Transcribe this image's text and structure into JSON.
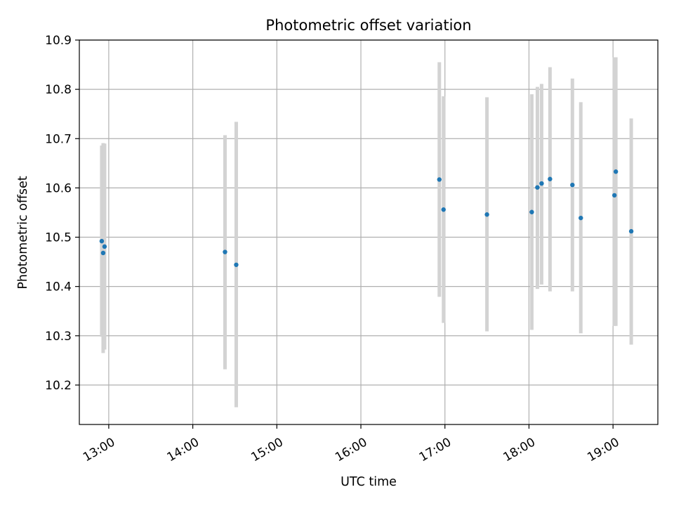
{
  "chart_data": {
    "type": "scatter",
    "title": "Photometric offset variation",
    "xlabel": "UTC time",
    "ylabel": "Photometric offset",
    "grid": true,
    "xlim": [
      "12:39",
      "19:32"
    ],
    "ylim": [
      10.12,
      10.9
    ],
    "x_ticks": [
      "13:00",
      "14:00",
      "15:00",
      "16:00",
      "17:00",
      "18:00",
      "19:00"
    ],
    "y_ticks": [
      "10.2",
      "10.3",
      "10.4",
      "10.5",
      "10.6",
      "10.7",
      "10.8",
      "10.9"
    ],
    "colors": {
      "point": "#1f77b4",
      "errorbar": "#d3d3d3",
      "grid": "#b0b0b0"
    },
    "points": [
      {
        "x": "12:55",
        "y": 10.492,
        "ylow": 10.298,
        "yhigh": 10.686
      },
      {
        "x": "12:56",
        "y": 10.468,
        "ylow": 10.265,
        "yhigh": 10.691
      },
      {
        "x": "12:57",
        "y": 10.481,
        "ylow": 10.272,
        "yhigh": 10.69
      },
      {
        "x": "14:23",
        "y": 10.47,
        "ylow": 10.232,
        "yhigh": 10.707
      },
      {
        "x": "14:31",
        "y": 10.444,
        "ylow": 10.155,
        "yhigh": 10.734
      },
      {
        "x": "16:56",
        "y": 10.617,
        "ylow": 10.379,
        "yhigh": 10.855
      },
      {
        "x": "16:59",
        "y": 10.556,
        "ylow": 10.326,
        "yhigh": 10.786
      },
      {
        "x": "17:30",
        "y": 10.546,
        "ylow": 10.309,
        "yhigh": 10.784
      },
      {
        "x": "18:02",
        "y": 10.551,
        "ylow": 10.312,
        "yhigh": 10.79
      },
      {
        "x": "18:06",
        "y": 10.601,
        "ylow": 10.395,
        "yhigh": 10.805
      },
      {
        "x": "18:09",
        "y": 10.609,
        "ylow": 10.404,
        "yhigh": 10.811
      },
      {
        "x": "18:15",
        "y": 10.618,
        "ylow": 10.39,
        "yhigh": 10.845
      },
      {
        "x": "18:31",
        "y": 10.606,
        "ylow": 10.39,
        "yhigh": 10.822
      },
      {
        "x": "18:37",
        "y": 10.539,
        "ylow": 10.305,
        "yhigh": 10.774
      },
      {
        "x": "19:01",
        "y": 10.585,
        "ylow": 10.32,
        "yhigh": 10.865
      },
      {
        "x": "19:02",
        "y": 10.633,
        "ylow": 10.32,
        "yhigh": 10.865
      },
      {
        "x": "19:13",
        "y": 10.512,
        "ylow": 10.282,
        "yhigh": 10.741
      }
    ]
  }
}
